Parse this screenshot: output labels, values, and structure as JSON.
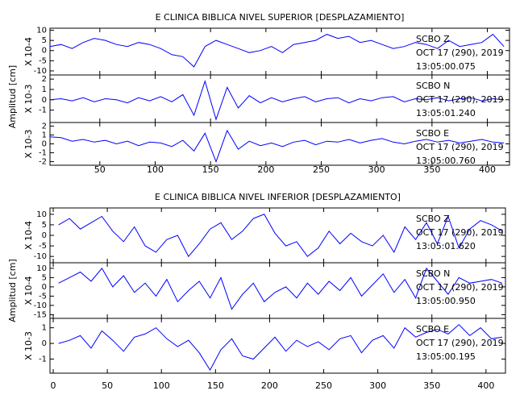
{
  "chart_data": [
    {
      "type": "line",
      "title": "E CLINICA BIBLICA NIVEL SUPERIOR [DESPLAZAMIENTO]",
      "ylabel": "Amplitud [cm]",
      "xlim": [
        5,
        420
      ],
      "xticks": [
        50,
        100,
        150,
        200,
        250,
        300,
        350,
        400
      ],
      "x": [
        5,
        15,
        25,
        35,
        45,
        55,
        65,
        75,
        85,
        95,
        105,
        115,
        125,
        135,
        145,
        155,
        165,
        175,
        185,
        195,
        205,
        215,
        225,
        235,
        245,
        255,
        265,
        275,
        285,
        295,
        305,
        315,
        325,
        335,
        345,
        355,
        365,
        375,
        385,
        395,
        405,
        415
      ],
      "panels": [
        {
          "scale": "X 10-4",
          "color": "#0000ff",
          "ylim": [
            -12,
            11
          ],
          "yticks": [
            -10,
            -5,
            0,
            5,
            10
          ],
          "annotation": [
            "SCBO  Z",
            "OCT 17 (290), 2019",
            "13:05:00.075"
          ],
          "values": [
            2,
            3,
            1,
            4,
            6,
            5,
            3,
            2,
            4,
            3,
            1,
            -2,
            -3,
            -8,
            2,
            5,
            3,
            1,
            -1,
            0,
            2,
            -1,
            3,
            4,
            5,
            8,
            6,
            7,
            4,
            5,
            3,
            1,
            2,
            4,
            3,
            1,
            5,
            2,
            3,
            4,
            8,
            2
          ]
        },
        {
          "scale": "X 10-3",
          "color": "#0000ff",
          "ylim": [
            -2.2,
            2.4
          ],
          "yticks": [
            -1,
            0,
            1,
            2
          ],
          "annotation": [
            "SCBO  N",
            "OCT 17 (290), 2019",
            "13:05:01.240"
          ],
          "values": [
            0,
            0.1,
            -0.1,
            0.2,
            -0.2,
            0.1,
            0,
            -0.3,
            0.2,
            -0.1,
            0.3,
            -0.2,
            0.5,
            -1.5,
            1.8,
            -1.9,
            1.2,
            -0.8,
            0.4,
            -0.3,
            0.2,
            -0.2,
            0.1,
            0.3,
            -0.2,
            0.1,
            0.2,
            -0.3,
            0.1,
            -0.1,
            0.2,
            0.3,
            -0.2,
            0.1,
            0,
            0.2,
            -0.1,
            0.1,
            0.2,
            -0.1,
            0.1,
            0
          ]
        },
        {
          "scale": "X 10-3",
          "color": "#0000ff",
          "ylim": [
            -2.4,
            2.4
          ],
          "yticks": [
            -2,
            -1,
            0,
            1,
            2
          ],
          "annotation": [
            "SCBO  E",
            "OCT 17 (290), 2019",
            "13:05:00.760"
          ],
          "values": [
            0.8,
            0.7,
            0.3,
            0.5,
            0.2,
            0.4,
            0,
            0.3,
            -0.2,
            0.2,
            0.1,
            -0.3,
            0.4,
            -0.8,
            1.2,
            -2,
            1.5,
            -0.6,
            0.3,
            -0.2,
            0.1,
            -0.3,
            0.2,
            0.4,
            -0.1,
            0.3,
            0.2,
            0.5,
            0.1,
            0.4,
            0.6,
            0.2,
            0,
            0.3,
            0.5,
            0.2,
            0.4,
            0.1,
            0.3,
            0.5,
            0.2,
            0.1
          ]
        }
      ]
    },
    {
      "type": "line",
      "title": "E CLINICA BIBLICA NIVEL INFERIOR [DESPLAZAMIENTO]",
      "ylabel": "Amplitud [cm]",
      "xlim": [
        -3,
        418
      ],
      "xticks": [
        0,
        50,
        100,
        150,
        200,
        250,
        300,
        350,
        400
      ],
      "x": [
        5,
        15,
        25,
        35,
        45,
        55,
        65,
        75,
        85,
        95,
        105,
        115,
        125,
        135,
        145,
        155,
        165,
        175,
        185,
        195,
        205,
        215,
        225,
        235,
        245,
        255,
        265,
        275,
        285,
        295,
        305,
        315,
        325,
        335,
        345,
        355,
        365,
        375,
        385,
        395,
        405,
        415
      ],
      "panels": [
        {
          "scale": "X 10-4",
          "color": "#0000ff",
          "ylim": [
            -13,
            13
          ],
          "yticks": [
            -10,
            -5,
            0,
            5,
            10
          ],
          "annotation": [
            "SCBO  Z",
            "OCT 17 (290), 2019",
            "13:05:01.620"
          ],
          "values": [
            5,
            8,
            3,
            6,
            9,
            2,
            -3,
            4,
            -5,
            -8,
            -2,
            0,
            -10,
            -4,
            3,
            6,
            -2,
            2,
            8,
            10,
            1,
            -5,
            -3,
            -10,
            -6,
            2,
            -4,
            1,
            -3,
            -5,
            0,
            -8,
            4,
            -2,
            6,
            -4,
            9,
            -6,
            3,
            7,
            5,
            2
          ]
        },
        {
          "scale": "X 10-4",
          "color": "#0000ff",
          "ylim": [
            -17,
            13
          ],
          "yticks": [
            -15,
            -10,
            -5,
            0,
            5,
            10
          ],
          "annotation": [
            "SCBO  N",
            "OCT 17 (290), 2019",
            "13:05:00.950"
          ],
          "values": [
            2,
            5,
            8,
            3,
            10,
            0,
            6,
            -3,
            2,
            -5,
            4,
            -8,
            -2,
            3,
            -6,
            5,
            -12,
            -4,
            2,
            -8,
            -3,
            0,
            -6,
            2,
            -4,
            3,
            -2,
            5,
            -5,
            1,
            7,
            -3,
            4,
            -6,
            10,
            3,
            -4,
            5,
            2,
            3,
            4,
            2
          ]
        },
        {
          "scale": "X 10-3",
          "color": "#0000ff",
          "ylim": [
            -1.9,
            1.6
          ],
          "yticks": [
            -1,
            0,
            1
          ],
          "annotation": [
            "SCBO  E",
            "OCT 17 (290), 2019",
            "13:05:00.195"
          ],
          "values": [
            0,
            0.2,
            0.5,
            -0.3,
            0.8,
            0.2,
            -0.5,
            0.4,
            0.6,
            1.0,
            0.3,
            -0.2,
            0.2,
            -0.6,
            -1.7,
            -0.4,
            0.3,
            -0.8,
            -1,
            -0.3,
            0.4,
            -0.5,
            0.2,
            -0.2,
            0.1,
            -0.4,
            0.3,
            0.5,
            -0.6,
            0.2,
            0.5,
            -0.3,
            1.0,
            0.4,
            0.7,
            0.9,
            0.6,
            1.2,
            0.5,
            1.0,
            0.3,
            0.4
          ]
        }
      ]
    }
  ]
}
